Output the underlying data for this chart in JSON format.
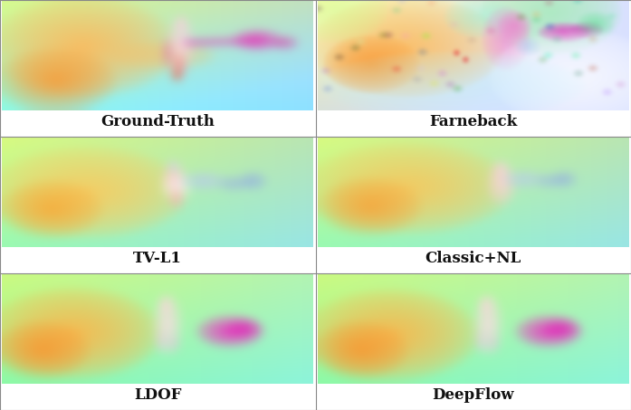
{
  "labels": [
    "Ground-Truth",
    "Farneback",
    "TV-L1",
    "Classic+NL",
    "LDOF",
    "DeepFlow"
  ],
  "grid_rows": 3,
  "grid_cols": 2,
  "label_fontsize": 12,
  "label_color": "#111111",
  "background_color": "#ffffff",
  "figsize": [
    6.97,
    4.53
  ],
  "dpi": 100
}
